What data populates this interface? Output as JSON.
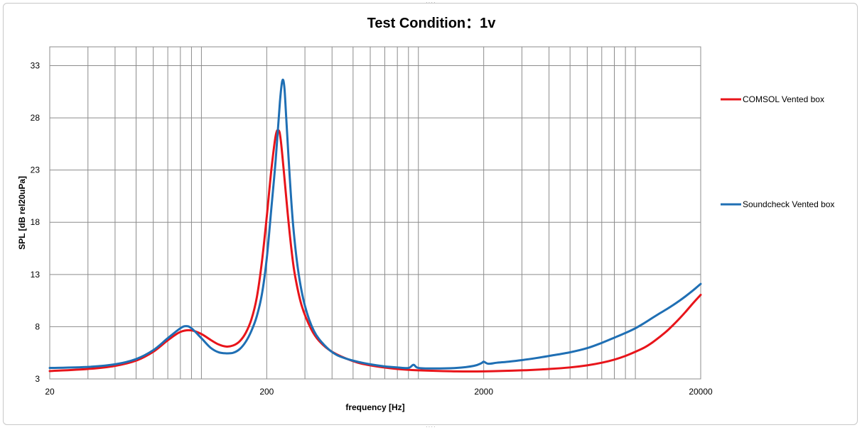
{
  "chart_data": {
    "type": "line",
    "title": "Test Condition：1v",
    "xlabel": "frequency [Hz]",
    "ylabel": "SPL [dB rel20uPa]",
    "xscale": "log",
    "xlim": [
      20,
      20000
    ],
    "ylim": [
      3,
      34.8
    ],
    "xticks": [
      20,
      200,
      2000,
      20000
    ],
    "xtick_labels": [
      "20",
      "200",
      "2000",
      "20000"
    ],
    "yticks": [
      3,
      8,
      13,
      18,
      23,
      28,
      33
    ],
    "ytick_labels": [
      "3",
      "8",
      "13",
      "18",
      "23",
      "28",
      "33"
    ],
    "grid": true,
    "legend_position": "right",
    "series": [
      {
        "name": "COMSOL Vented box",
        "color": "#e8141a",
        "points": [
          [
            20,
            3.75
          ],
          [
            30,
            3.95
          ],
          [
            40,
            4.25
          ],
          [
            50,
            4.75
          ],
          [
            60,
            5.6
          ],
          [
            70,
            6.7
          ],
          [
            80,
            7.5
          ],
          [
            90,
            7.65
          ],
          [
            100,
            7.3
          ],
          [
            110,
            6.75
          ],
          [
            120,
            6.3
          ],
          [
            130,
            6.1
          ],
          [
            140,
            6.2
          ],
          [
            150,
            6.6
          ],
          [
            160,
            7.4
          ],
          [
            170,
            8.7
          ],
          [
            180,
            10.8
          ],
          [
            190,
            14.2
          ],
          [
            200,
            18.5
          ],
          [
            210,
            23.0
          ],
          [
            220,
            26.3
          ],
          [
            227,
            26.8
          ],
          [
            232,
            25.9
          ],
          [
            240,
            22.8
          ],
          [
            250,
            18.8
          ],
          [
            260,
            15.4
          ],
          [
            270,
            12.9
          ],
          [
            290,
            10.0
          ],
          [
            320,
            7.8
          ],
          [
            350,
            6.6
          ],
          [
            400,
            5.6
          ],
          [
            500,
            4.7
          ],
          [
            600,
            4.3
          ],
          [
            800,
            3.95
          ],
          [
            1000,
            3.82
          ],
          [
            1500,
            3.72
          ],
          [
            2000,
            3.72
          ],
          [
            3000,
            3.82
          ],
          [
            4000,
            3.95
          ],
          [
            5000,
            4.1
          ],
          [
            6000,
            4.3
          ],
          [
            7000,
            4.55
          ],
          [
            8000,
            4.85
          ],
          [
            9000,
            5.2
          ],
          [
            10000,
            5.6
          ],
          [
            11000,
            6.0
          ],
          [
            12000,
            6.5
          ],
          [
            13000,
            7.05
          ],
          [
            14000,
            7.6
          ],
          [
            15000,
            8.2
          ],
          [
            16000,
            8.8
          ],
          [
            17000,
            9.4
          ],
          [
            18000,
            10.0
          ],
          [
            19000,
            10.55
          ],
          [
            20000,
            11.05
          ]
        ]
      },
      {
        "name": "Soundcheck Vented box",
        "color": "#1f6fb4",
        "points": [
          [
            20,
            4.05
          ],
          [
            30,
            4.15
          ],
          [
            40,
            4.4
          ],
          [
            50,
            4.9
          ],
          [
            60,
            5.75
          ],
          [
            70,
            6.9
          ],
          [
            80,
            7.85
          ],
          [
            85,
            8.05
          ],
          [
            90,
            7.85
          ],
          [
            100,
            6.9
          ],
          [
            110,
            6.0
          ],
          [
            120,
            5.55
          ],
          [
            130,
            5.45
          ],
          [
            140,
            5.5
          ],
          [
            150,
            5.85
          ],
          [
            160,
            6.55
          ],
          [
            170,
            7.6
          ],
          [
            180,
            9.0
          ],
          [
            190,
            11.1
          ],
          [
            200,
            14.5
          ],
          [
            210,
            19.3
          ],
          [
            220,
            24.0
          ],
          [
            230,
            29.5
          ],
          [
            236,
            31.55
          ],
          [
            241,
            31.0
          ],
          [
            246,
            28.0
          ],
          [
            255,
            22.5
          ],
          [
            265,
            17.6
          ],
          [
            280,
            13.2
          ],
          [
            300,
            10.0
          ],
          [
            330,
            7.6
          ],
          [
            370,
            6.2
          ],
          [
            420,
            5.3
          ],
          [
            500,
            4.75
          ],
          [
            600,
            4.4
          ],
          [
            700,
            4.2
          ],
          [
            800,
            4.1
          ],
          [
            900,
            4.05
          ],
          [
            950,
            4.35
          ],
          [
            1000,
            4.05
          ],
          [
            1200,
            4.0
          ],
          [
            1500,
            4.05
          ],
          [
            1800,
            4.25
          ],
          [
            1950,
            4.5
          ],
          [
            2000,
            4.65
          ],
          [
            2100,
            4.45
          ],
          [
            2300,
            4.55
          ],
          [
            2600,
            4.65
          ],
          [
            3000,
            4.8
          ],
          [
            3500,
            5.0
          ],
          [
            4000,
            5.2
          ],
          [
            5000,
            5.55
          ],
          [
            6000,
            5.95
          ],
          [
            7000,
            6.45
          ],
          [
            8000,
            6.95
          ],
          [
            9000,
            7.4
          ],
          [
            10000,
            7.85
          ],
          [
            11000,
            8.35
          ],
          [
            12000,
            8.85
          ],
          [
            13000,
            9.3
          ],
          [
            14000,
            9.7
          ],
          [
            15000,
            10.1
          ],
          [
            16000,
            10.5
          ],
          [
            17000,
            10.9
          ],
          [
            18000,
            11.3
          ],
          [
            19000,
            11.7
          ],
          [
            20000,
            12.1
          ]
        ]
      }
    ]
  }
}
